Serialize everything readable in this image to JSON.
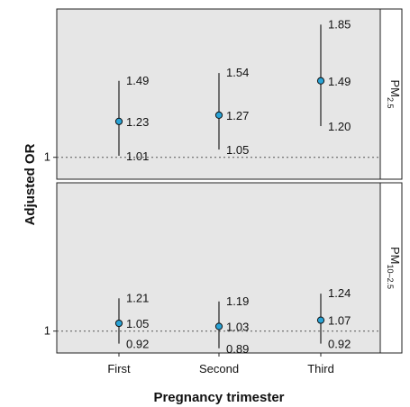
{
  "chart_data": {
    "type": "scatter",
    "xlabel": "Pregnancy trimester",
    "ylabel": "Adjusted OR",
    "categories": [
      "First",
      "Second",
      "Third"
    ],
    "reference_line": 1,
    "panels": [
      {
        "name": "PM2.5",
        "strip_main": "PM",
        "strip_sub": "2.5",
        "ylim": [
          0.86,
          1.95
        ],
        "ytick": "1",
        "points": [
          {
            "x": "First",
            "or": 1.23,
            "lower": 1.01,
            "upper": 1.49,
            "or_label": "1.23",
            "lower_label": "1.01",
            "upper_label": "1.49"
          },
          {
            "x": "Second",
            "or": 1.27,
            "lower": 1.05,
            "upper": 1.54,
            "or_label": "1.27",
            "lower_label": "1.05",
            "upper_label": "1.54"
          },
          {
            "x": "Third",
            "or": 1.49,
            "lower": 1.2,
            "upper": 1.85,
            "or_label": "1.49",
            "lower_label": "1.20",
            "upper_label": "1.85"
          }
        ]
      },
      {
        "name": "PM10–2.5",
        "strip_main": "PM",
        "strip_sub": "10–2.5",
        "ylim": [
          0.86,
          1.95
        ],
        "ytick": "1",
        "points": [
          {
            "x": "First",
            "or": 1.05,
            "lower": 0.92,
            "upper": 1.21,
            "or_label": "1.05",
            "lower_label": "0.92",
            "upper_label": "1.21"
          },
          {
            "x": "Second",
            "or": 1.03,
            "lower": 0.89,
            "upper": 1.19,
            "or_label": "1.03",
            "lower_label": "0.89",
            "upper_label": "1.19"
          },
          {
            "x": "Third",
            "or": 1.07,
            "lower": 0.92,
            "upper": 1.24,
            "or_label": "1.07",
            "lower_label": "0.92",
            "upper_label": "1.24"
          }
        ]
      }
    ],
    "colors": {
      "panel_bg": "#e6e6e6",
      "point": "#29a3d6",
      "line": "#222222",
      "reference": "#555555"
    }
  }
}
